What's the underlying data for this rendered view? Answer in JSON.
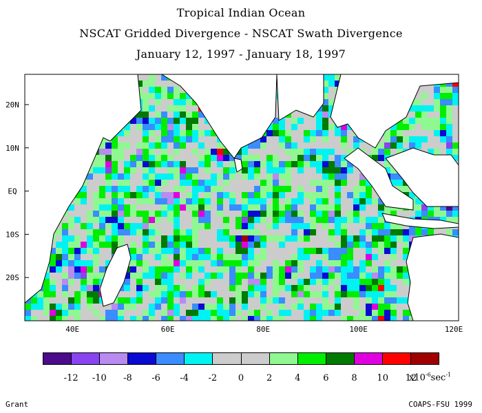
{
  "title": {
    "line1": "Tropical Indian Ocean",
    "line2": "NSCAT Gridded Divergence - NSCAT Swath Divergence",
    "line3": "January 12, 1997 - January 18, 1997"
  },
  "map": {
    "lon_range": [
      30,
      121
    ],
    "lat_range": [
      -30,
      27
    ],
    "lon_ticks": [
      "40E",
      "60E",
      "80E",
      "100E",
      "120E"
    ],
    "lat_ticks": [
      "20N",
      "10N",
      "EQ",
      "10S",
      "20S"
    ],
    "field_note_values": [
      -12,
      -10,
      -8,
      -6,
      -4,
      -2,
      0,
      2,
      4,
      6,
      8,
      10,
      12
    ]
  },
  "colorbar": {
    "colors": [
      "#4b0b8a",
      "#8844f0",
      "#b98af0",
      "#0a0ad2",
      "#3a8cff",
      "#00f2f2",
      "#cccccc",
      "#cccccc",
      "#90f890",
      "#00ee00",
      "#007a00",
      "#e000e0",
      "#ff0000",
      "#a00000"
    ],
    "labels": [
      "-12",
      "-10",
      "-8",
      "-6",
      "-4",
      "-2",
      "0",
      "2",
      "4",
      "6",
      "8",
      "10",
      "12"
    ],
    "units_prefix": "x10",
    "units_exp": "-6",
    "units_suffix": "sec",
    "units_exp2": "-1"
  },
  "footer": {
    "left": "Grant",
    "right": "COAPS-FSU 1999"
  }
}
